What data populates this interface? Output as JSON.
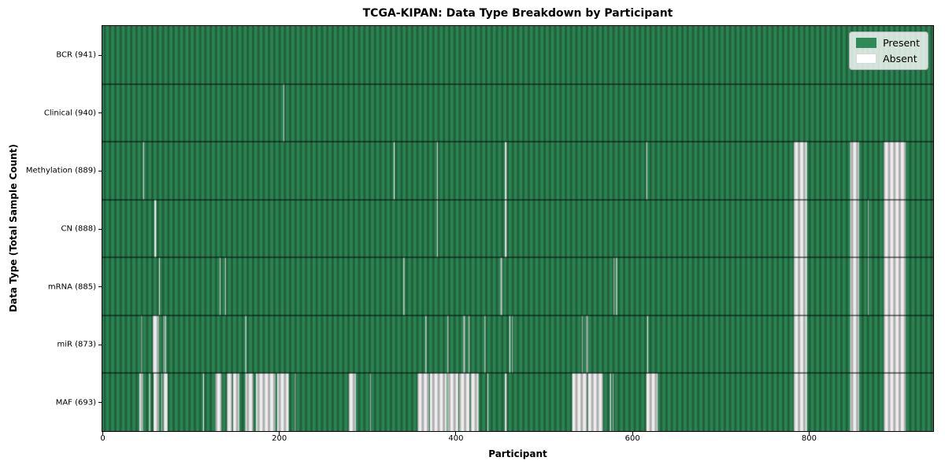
{
  "chart_data": {
    "type": "heatmap",
    "title": "TCGA-KIPAN: Data Type Breakdown by Participant",
    "xlabel": "Participant",
    "ylabel": "Data Type (Total Sample Count)",
    "x_ticks": [
      0,
      200,
      400,
      600,
      800
    ],
    "n_participants": 941,
    "grid": false,
    "legend_position": "upper right",
    "colors": {
      "present": "#2e8b57",
      "absent": "#fafafa",
      "row_separator": "#000000",
      "plot_border": "#000000"
    },
    "legend": [
      {
        "label": "Present",
        "color": "#2e8b57"
      },
      {
        "label": "Absent",
        "color": "#ffffff"
      }
    ],
    "rows": [
      {
        "label": "BCR (941)",
        "data_type": "BCR",
        "present_count": 941,
        "absent_segments": []
      },
      {
        "label": "Clinical (940)",
        "data_type": "Clinical",
        "present_count": 940,
        "absent_segments": [
          [
            205,
            206
          ]
        ]
      },
      {
        "label": "Methylation (889)",
        "data_type": "Methylation",
        "present_count": 889,
        "absent_segments": [
          [
            46,
            47
          ],
          [
            330,
            331
          ],
          [
            379,
            380
          ],
          [
            456,
            458
          ],
          [
            616,
            617
          ],
          [
            783,
            798
          ],
          [
            847,
            857
          ],
          [
            885,
            910
          ]
        ]
      },
      {
        "label": "CN (888)",
        "data_type": "CN",
        "present_count": 888,
        "absent_segments": [
          [
            59,
            61
          ],
          [
            379,
            380
          ],
          [
            456,
            458
          ],
          [
            783,
            798
          ],
          [
            847,
            857
          ],
          [
            867,
            868
          ],
          [
            885,
            910
          ]
        ]
      },
      {
        "label": "mRNA (885)",
        "data_type": "mRNA",
        "present_count": 885,
        "absent_segments": [
          [
            64,
            65
          ],
          [
            133,
            134
          ],
          [
            139,
            140
          ],
          [
            341,
            342
          ],
          [
            451,
            453
          ],
          [
            579,
            580
          ],
          [
            582,
            583
          ],
          [
            783,
            798
          ],
          [
            847,
            857
          ],
          [
            867,
            868
          ],
          [
            885,
            910
          ]
        ]
      },
      {
        "label": "miR (873)",
        "data_type": "miR",
        "present_count": 873,
        "absent_segments": [
          [
            44,
            45
          ],
          [
            57,
            64
          ],
          [
            69,
            70
          ],
          [
            71,
            72
          ],
          [
            162,
            163
          ],
          [
            366,
            367
          ],
          [
            391,
            392
          ],
          [
            409,
            411
          ],
          [
            415,
            416
          ],
          [
            433,
            434
          ],
          [
            461,
            462
          ],
          [
            464,
            465
          ],
          [
            543,
            544
          ],
          [
            548,
            550
          ],
          [
            617,
            618
          ],
          [
            783,
            798
          ],
          [
            847,
            857
          ],
          [
            885,
            910
          ]
        ]
      },
      {
        "label": "MAF (693)",
        "data_type": "MAF",
        "present_count": 693,
        "absent_segments": [
          [
            42,
            46
          ],
          [
            53,
            54
          ],
          [
            58,
            64
          ],
          [
            67,
            68
          ],
          [
            69,
            74
          ],
          [
            114,
            115
          ],
          [
            128,
            135
          ],
          [
            141,
            147
          ],
          [
            148,
            155
          ],
          [
            162,
            171
          ],
          [
            174,
            196
          ],
          [
            198,
            211
          ],
          [
            218,
            219
          ],
          [
            279,
            287
          ],
          [
            303,
            304
          ],
          [
            357,
            370
          ],
          [
            371,
            390
          ],
          [
            391,
            403
          ],
          [
            404,
            416
          ],
          [
            417,
            426
          ],
          [
            436,
            437
          ],
          [
            456,
            458
          ],
          [
            532,
            549
          ],
          [
            550,
            567
          ],
          [
            575,
            576
          ],
          [
            578,
            579
          ],
          [
            616,
            629
          ],
          [
            783,
            798
          ],
          [
            847,
            857
          ],
          [
            885,
            910
          ]
        ]
      }
    ]
  }
}
